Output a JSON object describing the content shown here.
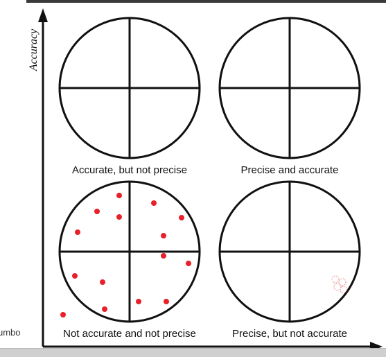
{
  "axis": {
    "y_label": "Accuracy"
  },
  "targets": [
    {
      "label": "Accurate, but not precise"
    },
    {
      "label": "Precise and accurate"
    },
    {
      "label": "Not accurate and not precise"
    },
    {
      "label": "Precise, but not accurate"
    }
  ],
  "left_fragment": "umbo",
  "colors": {
    "dot": "#e8202a",
    "line": "#111111",
    "axis": "#111111"
  }
}
